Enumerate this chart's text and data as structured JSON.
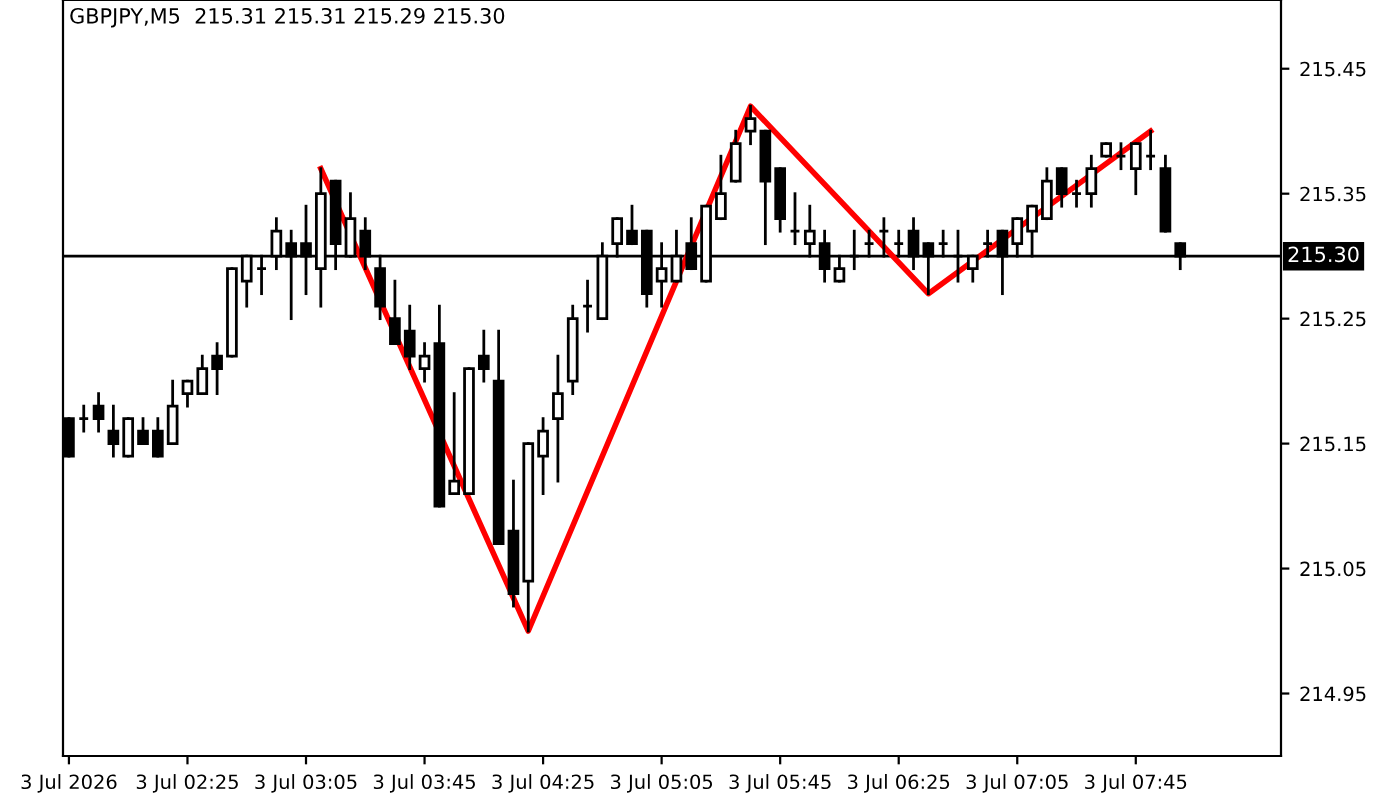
{
  "chart_data": {
    "type": "candlestick",
    "title": "GBPJPY,M5  215.31 215.31 215.29 215.30",
    "x": [
      "2026-07-03T01:45",
      "2026-07-03T01:50",
      "2026-07-03T01:55",
      "2026-07-03T02:00",
      "2026-07-03T02:05",
      "2026-07-03T02:10",
      "2026-07-03T02:15",
      "2026-07-03T02:20",
      "2026-07-03T02:25",
      "2026-07-03T02:30",
      "2026-07-03T02:35",
      "2026-07-03T02:40",
      "2026-07-03T02:45",
      "2026-07-03T02:50",
      "2026-07-03T02:55",
      "2026-07-03T03:00",
      "2026-07-03T03:05",
      "2026-07-03T03:10",
      "2026-07-03T03:15",
      "2026-07-03T03:20",
      "2026-07-03T03:25",
      "2026-07-03T03:30",
      "2026-07-03T03:35",
      "2026-07-03T03:40",
      "2026-07-03T03:45",
      "2026-07-03T03:50",
      "2026-07-03T03:55",
      "2026-07-03T04:00",
      "2026-07-03T04:05",
      "2026-07-03T04:10",
      "2026-07-03T04:15",
      "2026-07-03T04:20",
      "2026-07-03T04:25",
      "2026-07-03T04:30",
      "2026-07-03T04:35",
      "2026-07-03T04:40",
      "2026-07-03T04:45",
      "2026-07-03T04:50",
      "2026-07-03T04:55",
      "2026-07-03T05:00",
      "2026-07-03T05:05",
      "2026-07-03T05:10",
      "2026-07-03T05:15",
      "2026-07-03T05:20",
      "2026-07-03T05:25",
      "2026-07-03T05:30",
      "2026-07-03T05:35",
      "2026-07-03T05:40",
      "2026-07-03T05:45",
      "2026-07-03T05:50",
      "2026-07-03T05:55",
      "2026-07-03T06:00",
      "2026-07-03T06:05",
      "2026-07-03T06:10",
      "2026-07-03T06:15",
      "2026-07-03T06:20",
      "2026-07-03T06:25",
      "2026-07-03T06:30",
      "2026-07-03T06:35",
      "2026-07-03T06:40",
      "2026-07-03T06:45",
      "2026-07-03T06:50",
      "2026-07-03T06:55",
      "2026-07-03T07:00",
      "2026-07-03T07:05",
      "2026-07-03T07:10",
      "2026-07-03T07:15",
      "2026-07-03T07:20",
      "2026-07-03T07:25",
      "2026-07-03T07:30",
      "2026-07-03T07:35",
      "2026-07-03T07:40",
      "2026-07-03T07:45",
      "2026-07-03T07:50",
      "2026-07-03T07:55",
      "2026-07-03T08:00"
    ],
    "ohlc": [
      [
        215.17,
        215.17,
        215.14,
        215.14
      ],
      [
        215.17,
        215.18,
        215.16,
        215.17
      ],
      [
        215.18,
        215.19,
        215.16,
        215.17
      ],
      [
        215.16,
        215.18,
        215.14,
        215.15
      ],
      [
        215.14,
        215.17,
        215.14,
        215.17
      ],
      [
        215.16,
        215.17,
        215.15,
        215.15
      ],
      [
        215.16,
        215.17,
        215.14,
        215.14
      ],
      [
        215.15,
        215.2,
        215.15,
        215.18
      ],
      [
        215.19,
        215.2,
        215.18,
        215.2
      ],
      [
        215.19,
        215.22,
        215.19,
        215.21
      ],
      [
        215.22,
        215.23,
        215.19,
        215.21
      ],
      [
        215.22,
        215.29,
        215.22,
        215.29
      ],
      [
        215.28,
        215.3,
        215.26,
        215.3
      ],
      [
        215.29,
        215.3,
        215.27,
        215.29
      ],
      [
        215.3,
        215.33,
        215.29,
        215.32
      ],
      [
        215.31,
        215.32,
        215.25,
        215.3
      ],
      [
        215.31,
        215.34,
        215.27,
        215.3
      ],
      [
        215.29,
        215.37,
        215.26,
        215.35
      ],
      [
        215.36,
        215.36,
        215.29,
        215.31
      ],
      [
        215.3,
        215.35,
        215.3,
        215.33
      ],
      [
        215.32,
        215.33,
        215.29,
        215.3
      ],
      [
        215.29,
        215.3,
        215.25,
        215.26
      ],
      [
        215.25,
        215.28,
        215.23,
        215.23
      ],
      [
        215.24,
        215.26,
        215.21,
        215.22
      ],
      [
        215.21,
        215.23,
        215.2,
        215.22
      ],
      [
        215.23,
        215.26,
        215.1,
        215.1
      ],
      [
        215.11,
        215.19,
        215.11,
        215.12
      ],
      [
        215.11,
        215.21,
        215.11,
        215.21
      ],
      [
        215.22,
        215.24,
        215.2,
        215.21
      ],
      [
        215.2,
        215.24,
        215.07,
        215.07
      ],
      [
        215.08,
        215.12,
        215.02,
        215.03
      ],
      [
        215.04,
        215.15,
        215.0,
        215.15
      ],
      [
        215.14,
        215.17,
        215.11,
        215.16
      ],
      [
        215.17,
        215.22,
        215.12,
        215.19
      ],
      [
        215.2,
        215.26,
        215.19,
        215.25
      ],
      [
        215.26,
        215.28,
        215.24,
        215.26
      ],
      [
        215.25,
        215.31,
        215.25,
        215.3
      ],
      [
        215.31,
        215.33,
        215.3,
        215.33
      ],
      [
        215.32,
        215.34,
        215.31,
        215.31
      ],
      [
        215.32,
        215.32,
        215.26,
        215.27
      ],
      [
        215.28,
        215.31,
        215.26,
        215.29
      ],
      [
        215.28,
        215.32,
        215.28,
        215.3
      ],
      [
        215.31,
        215.33,
        215.29,
        215.29
      ],
      [
        215.28,
        215.34,
        215.28,
        215.34
      ],
      [
        215.33,
        215.38,
        215.33,
        215.35
      ],
      [
        215.36,
        215.4,
        215.36,
        215.39
      ],
      [
        215.4,
        215.42,
        215.39,
        215.41
      ],
      [
        215.4,
        215.4,
        215.31,
        215.36
      ],
      [
        215.37,
        215.37,
        215.32,
        215.33
      ],
      [
        215.32,
        215.35,
        215.31,
        215.32
      ],
      [
        215.31,
        215.34,
        215.3,
        215.32
      ],
      [
        215.31,
        215.32,
        215.28,
        215.29
      ],
      [
        215.28,
        215.3,
        215.28,
        215.29
      ],
      [
        215.3,
        215.32,
        215.29,
        215.3
      ],
      [
        215.31,
        215.32,
        215.3,
        215.31
      ],
      [
        215.32,
        215.33,
        215.3,
        215.32
      ],
      [
        215.31,
        215.32,
        215.3,
        215.31
      ],
      [
        215.32,
        215.33,
        215.29,
        215.3
      ],
      [
        215.31,
        215.31,
        215.27,
        215.3
      ],
      [
        215.31,
        215.32,
        215.3,
        215.31
      ],
      [
        215.3,
        215.32,
        215.28,
        215.3
      ],
      [
        215.29,
        215.3,
        215.28,
        215.3
      ],
      [
        215.31,
        215.32,
        215.3,
        215.31
      ],
      [
        215.32,
        215.32,
        215.27,
        215.3
      ],
      [
        215.31,
        215.33,
        215.3,
        215.33
      ],
      [
        215.32,
        215.34,
        215.3,
        215.34
      ],
      [
        215.33,
        215.37,
        215.33,
        215.36
      ],
      [
        215.37,
        215.37,
        215.34,
        215.35
      ],
      [
        215.35,
        215.36,
        215.34,
        215.35
      ],
      [
        215.35,
        215.38,
        215.34,
        215.37
      ],
      [
        215.38,
        215.39,
        215.38,
        215.39
      ],
      [
        215.38,
        215.39,
        215.37,
        215.38
      ],
      [
        215.37,
        215.39,
        215.35,
        215.39
      ],
      [
        215.38,
        215.4,
        215.37,
        215.38
      ],
      [
        215.37,
        215.38,
        215.32,
        215.32
      ],
      [
        215.31,
        215.31,
        215.29,
        215.3
      ]
    ],
    "colors": [
      "#000000",
      "#000000",
      "#000000",
      "#000000",
      "#ffffff",
      "#000000",
      "#000000",
      "#ffffff",
      "#ffffff",
      "#ffffff",
      "#000000",
      "#ffffff",
      "#ffffff",
      "#000000",
      "#ffffff",
      "#000000",
      "#000000",
      "#ffffff",
      "#000000",
      "#ffffff",
      "#000000",
      "#000000",
      "#000000",
      "#000000",
      "#ffffff",
      "#000000",
      "#ffffff",
      "#ffffff",
      "#000000",
      "#000000",
      "#000000",
      "#ffffff",
      "#ffffff",
      "#ffffff",
      "#ffffff",
      "#000000",
      "#ffffff",
      "#ffffff",
      "#000000",
      "#000000",
      "#ffffff",
      "#ffffff",
      "#000000",
      "#ffffff",
      "#ffffff",
      "#ffffff",
      "#ffffff",
      "#000000",
      "#000000",
      "#000000",
      "#ffffff",
      "#000000",
      "#ffffff",
      "#000000",
      "#000000",
      "#000000",
      "#000000",
      "#000000",
      "#000000",
      "#000000",
      "#000000",
      "#ffffff",
      "#000000",
      "#000000",
      "#ffffff",
      "#ffffff",
      "#ffffff",
      "#000000",
      "#000000",
      "#ffffff",
      "#ffffff",
      "#000000",
      "#ffffff",
      "#000000",
      "#000000",
      "#000000"
    ],
    "series": [
      {
        "type": "line",
        "color": "#ff0000",
        "x": [
          "2026-07-03T03:10",
          "2026-07-03T04:20",
          "2026-07-03T05:35",
          "2026-07-03T06:35",
          "2026-07-03T07:50"
        ],
        "values": [
          215.37,
          215.0,
          215.42,
          215.27,
          215.4
        ]
      }
    ],
    "xlim": [
      "2026-07-03T01:43",
      "2026-07-03T08:34"
    ],
    "xticks": [
      {
        "value": "2026-07-03T01:45",
        "label": "3 Jul 2026"
      },
      {
        "value": "2026-07-03T02:25",
        "label": "3 Jul 02:25"
      },
      {
        "value": "2026-07-03T03:05",
        "label": "3 Jul 03:05"
      },
      {
        "value": "2026-07-03T03:45",
        "label": "3 Jul 03:45"
      },
      {
        "value": "2026-07-03T04:25",
        "label": "3 Jul 04:25"
      },
      {
        "value": "2026-07-03T05:05",
        "label": "3 Jul 05:05"
      },
      {
        "value": "2026-07-03T05:45",
        "label": "3 Jul 05:45"
      },
      {
        "value": "2026-07-03T06:25",
        "label": "3 Jul 06:25"
      },
      {
        "value": "2026-07-03T07:05",
        "label": "3 Jul 07:05"
      },
      {
        "value": "2026-07-03T07:45",
        "label": "3 Jul 07:45"
      }
    ],
    "ylim": [
      214.9,
      215.505
    ],
    "yticks": [
      214.95,
      215.05,
      215.15,
      215.25,
      215.35,
      215.45
    ],
    "ref_lines": [
      {
        "axis": "y",
        "value": 215.3,
        "label": "215.30",
        "color": "#000000"
      }
    ],
    "grid": false
  }
}
